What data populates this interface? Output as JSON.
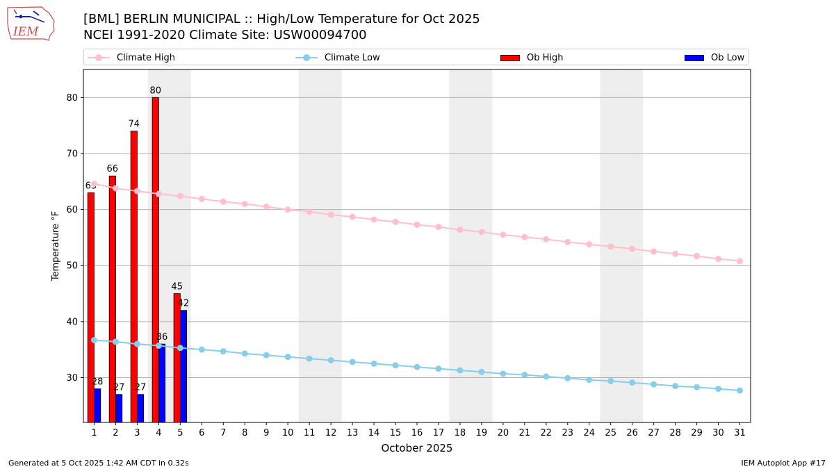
{
  "header": {
    "logo_text": "IEM",
    "title_line1": "[BML] BERLIN MUNICIPAL :: High/Low Temperature for Oct 2025",
    "title_line2": "NCEI 1991-2020 Climate Site: USW00094700"
  },
  "footer": {
    "generated": "Generated at 5 Oct 2025 1:42 AM CDT in 0.32s",
    "app": "IEM Autoplot App #17"
  },
  "chart_data": {
    "type": "bar",
    "xlabel": "October 2025",
    "ylabel": "Temperature °F",
    "xlim": [
      0.5,
      31.5
    ],
    "ylim": [
      22,
      85
    ],
    "yticks": [
      30,
      40,
      50,
      60,
      70,
      80
    ],
    "x": [
      1,
      2,
      3,
      4,
      5,
      6,
      7,
      8,
      9,
      10,
      11,
      12,
      13,
      14,
      15,
      16,
      17,
      18,
      19,
      20,
      21,
      22,
      23,
      24,
      25,
      26,
      27,
      28,
      29,
      30,
      31
    ],
    "weekend_days": [
      4,
      5,
      11,
      12,
      18,
      19,
      25,
      26
    ],
    "grid": "horizontal",
    "legend_position": "top",
    "colors": {
      "climate_high": "#ffc0cb",
      "climate_low": "#87ceeb",
      "ob_high": "#ff0000",
      "ob_low": "#0000ff",
      "weekend_shade": "#eeeeee"
    },
    "series": [
      {
        "name": "Climate High",
        "kind": "line",
        "values": [
          64.6,
          63.8,
          63.3,
          62.8,
          62.4,
          61.9,
          61.4,
          61.0,
          60.5,
          60.0,
          59.6,
          59.1,
          58.7,
          58.2,
          57.8,
          57.3,
          56.9,
          56.4,
          56.0,
          55.5,
          55.1,
          54.7,
          54.2,
          53.8,
          53.4,
          53.0,
          52.5,
          52.1,
          51.7,
          51.2,
          50.8
        ]
      },
      {
        "name": "Climate Low",
        "kind": "line",
        "values": [
          36.7,
          36.4,
          36.0,
          35.7,
          35.3,
          35.0,
          34.7,
          34.3,
          34.0,
          33.7,
          33.4,
          33.1,
          32.8,
          32.5,
          32.2,
          31.9,
          31.6,
          31.3,
          31.0,
          30.7,
          30.5,
          30.2,
          29.9,
          29.6,
          29.4,
          29.1,
          28.8,
          28.5,
          28.3,
          28.0,
          27.7
        ]
      },
      {
        "name": "Ob High",
        "kind": "bar",
        "x": [
          1,
          2,
          3,
          4,
          5
        ],
        "values": [
          63,
          66,
          74,
          80,
          45
        ]
      },
      {
        "name": "Ob Low",
        "kind": "bar",
        "x": [
          1,
          2,
          3,
          4,
          5
        ],
        "values": [
          28,
          27,
          27,
          36,
          42
        ]
      }
    ]
  }
}
